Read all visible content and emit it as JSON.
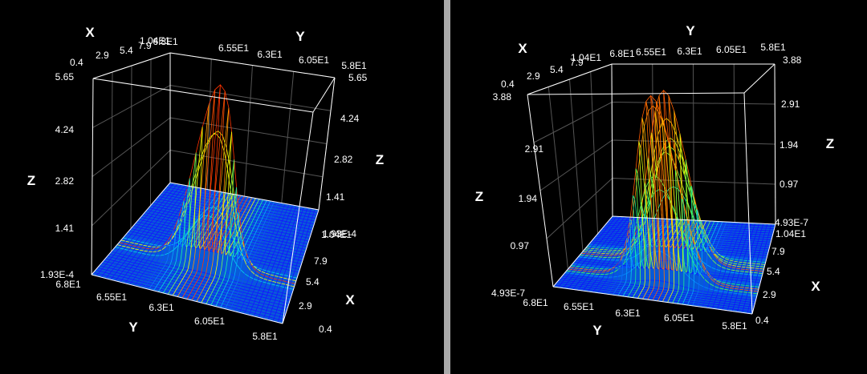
{
  "chart_data": [
    {
      "type": "surface3d",
      "axis_titles": {
        "x": "X",
        "y": "Y",
        "z": "Z"
      },
      "x_ticks": [
        "0.4",
        "2.9",
        "5.4",
        "7.9",
        "1.04E1"
      ],
      "y_ticks": [
        "6.8E1",
        "6.55E1",
        "6.3E1",
        "6.05E1",
        "5.8E1"
      ],
      "z_ticks": [
        "1.93E-4",
        "1.41",
        "2.82",
        "4.24",
        "5.65"
      ],
      "x_range": [
        0.4,
        10.4
      ],
      "y_range": [
        58,
        68
      ],
      "z_range": [
        0.000193,
        5.65
      ],
      "peaks": [
        {
          "x": 5.4,
          "y": 64.5,
          "z": 5.65
        }
      ],
      "colormap": [
        "#1414ff",
        "#00c8ff",
        "#22ff88",
        "#ffff00",
        "#ff3300"
      ]
    },
    {
      "type": "surface3d",
      "axis_titles": {
        "x": "X",
        "y": "Y",
        "z": "Z"
      },
      "x_ticks": [
        "0.4",
        "2.9",
        "5.4",
        "7.9",
        "1.04E1"
      ],
      "y_ticks": [
        "6.8E1",
        "6.55E1",
        "6.3E1",
        "6.05E1",
        "5.8E1"
      ],
      "z_ticks": [
        "4.93E-7",
        "0.97",
        "1.94",
        "2.91",
        "3.88"
      ],
      "x_range": [
        0.4,
        10.4
      ],
      "y_range": [
        58,
        68
      ],
      "z_range": [
        4.93e-07,
        3.88
      ],
      "peaks": [
        {
          "x": 5.4,
          "y": 65.4,
          "z": 3.88
        },
        {
          "x": 5.4,
          "y": 63.2,
          "z": 3.7
        },
        {
          "x": 5.4,
          "y": 62.6,
          "z": 2.7
        }
      ],
      "colormap": [
        "#1010ff",
        "#00c8ff",
        "#22ff66",
        "#ffff00",
        "#ff3300"
      ]
    }
  ]
}
